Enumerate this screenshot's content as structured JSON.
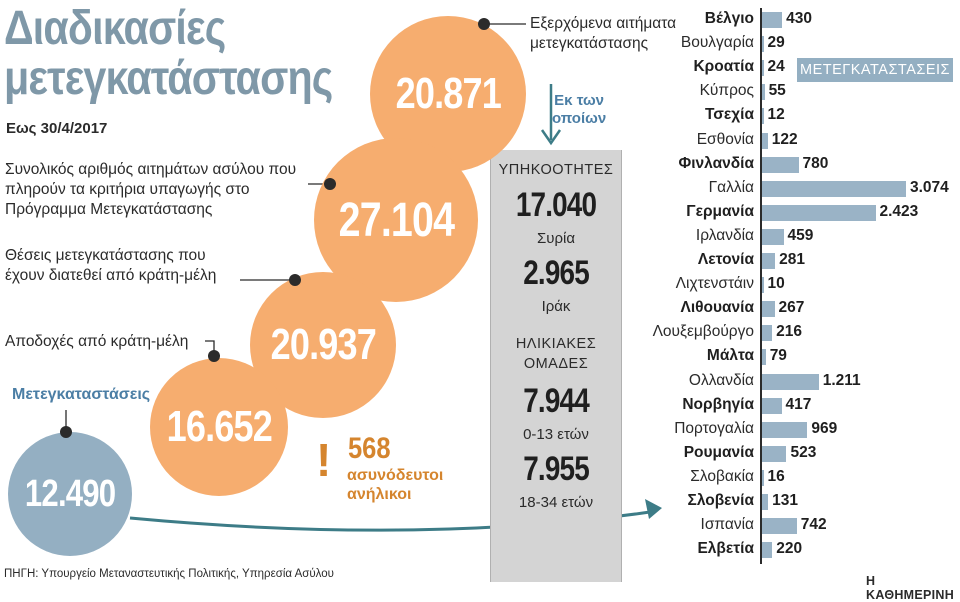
{
  "title": "Διαδικασίες μετεγκατάστασης",
  "date": "Εως 30/4/2017",
  "circles": [
    {
      "value": "20.871",
      "label": "Εξερχόμενα αιτήματα μετεγκατάστασης"
    },
    {
      "value": "27.104",
      "label": "Συνολικός αριθμός αιτημάτων ασύλου που πληρούν τα κριτήρια υπαγωγής στο Πρόγραμμα Μετεγκατάστασης"
    },
    {
      "value": "20.937",
      "label": "Θέσεις μετεγκατάστασης που έχουν διατεθεί από κράτη-μέλη"
    },
    {
      "value": "16.652",
      "label": "Αποδοχές από κράτη-μέλη"
    },
    {
      "value": "12.490",
      "label": "Μετεγκαταστάσεις"
    }
  ],
  "colors": {
    "orange": "#f6ad6f",
    "blue": "#94afc2",
    "accent_text": "#4b7ea5",
    "unaccompanied": "#d5852e"
  },
  "unaccompanied": {
    "mark": "!",
    "value": "568",
    "line1": "ασυνόδευτοι",
    "line2": "ανήλικοι"
  },
  "of_which": {
    "line1": "Εκ των",
    "line2": "οποίων"
  },
  "panel": {
    "nationality_header": "ΥΠΗΚΟΟΤΗΤΕΣ",
    "nationalities": [
      {
        "value": "17.040",
        "label": "Συρία"
      },
      {
        "value": "2.965",
        "label": "Ιράκ"
      }
    ],
    "age_header_1": "ΗΛΙΚΙΑΚΕΣ",
    "age_header_2": "ΟΜΑΔΕΣ",
    "ages": [
      {
        "value": "7.944",
        "label": "0-13 ετών"
      },
      {
        "value": "7.955",
        "label": "18-34 ετών"
      }
    ]
  },
  "badge": "ΜΕΤΕΓΚΑΤΑΣΤΑΣΕΙΣ",
  "source": "ΠΗΓΗ: Υπουργείο Μεταναστευτικής Πολιτικής, Υπηρεσία Ασύλου",
  "brand": "Η ΚΑΘΗΜΕΡΙΝΗ",
  "chart_data": {
    "type": "bar",
    "orientation": "horizontal",
    "title": "ΜΕΤΕΓΚΑΤΑΣΤΑΣΕΙΣ",
    "xmax": 3074,
    "categories": [
      "Βέλγιο",
      "Βουλγαρία",
      "Κροατία",
      "Κύπρος",
      "Τσεχία",
      "Εσθονία",
      "Φινλανδία",
      "Γαλλία",
      "Γερμανία",
      "Ιρλανδία",
      "Λετονία",
      "Λιχτενστάιν",
      "Λιθουανία",
      "Λουξεμβούργο",
      "Μάλτα",
      "Ολλανδία",
      "Νορβηγία",
      "Πορτογαλία",
      "Ρουμανία",
      "Σλοβακία",
      "Σλοβενία",
      "Ισπανία",
      "Ελβετία"
    ],
    "bold": [
      true,
      false,
      true,
      false,
      true,
      false,
      true,
      false,
      true,
      false,
      true,
      false,
      true,
      false,
      true,
      false,
      true,
      false,
      true,
      false,
      true,
      false,
      true
    ],
    "values": [
      430,
      29,
      24,
      55,
      12,
      122,
      780,
      3074,
      2423,
      459,
      281,
      10,
      267,
      216,
      79,
      1211,
      417,
      969,
      523,
      16,
      131,
      742,
      220
    ],
    "labels": [
      "430",
      "29",
      "24",
      "55",
      "12",
      "122",
      "780",
      "3.074",
      "2.423",
      "459",
      "281",
      "10",
      "267",
      "216",
      "79",
      "1.211",
      "417",
      "969",
      "523",
      "16",
      "131",
      "742",
      "220"
    ]
  }
}
